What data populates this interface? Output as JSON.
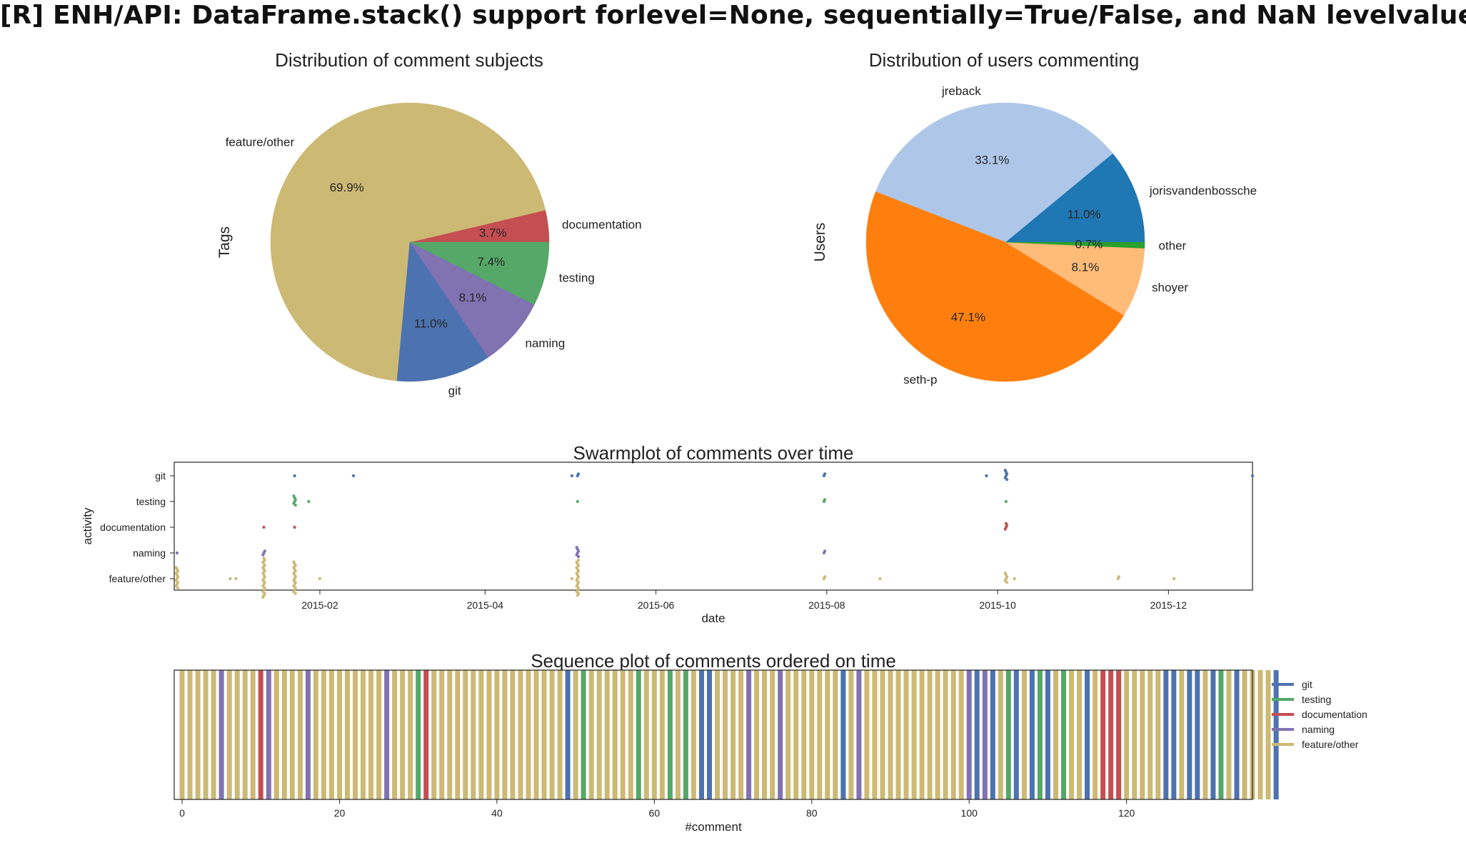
{
  "page_title": "[R] ENH/API: DataFrame.stack() support forlevel=None, sequentially=True/False, and NaN levelvalues.",
  "colors": {
    "git": "#4c72b0",
    "testing": "#55a868",
    "documentation": "#c44e52",
    "naming": "#8172b2",
    "feature/other": "#ccb974"
  },
  "chart_data": [
    {
      "type": "pie",
      "title": "Distribution of comment subjects",
      "ylabel": "Tags",
      "slices": [
        {
          "label": "documentation",
          "pct": 3.7,
          "pct_label": "3.7%",
          "color": "#c44e52"
        },
        {
          "label": "feature/other",
          "pct": 69.9,
          "pct_label": "69.9%",
          "color": "#ccb974"
        },
        {
          "label": "git",
          "pct": 11.0,
          "pct_label": "11.0%",
          "color": "#4c72b0"
        },
        {
          "label": "naming",
          "pct": 8.1,
          "pct_label": "8.1%",
          "color": "#8172b2"
        },
        {
          "label": "testing",
          "pct": 7.4,
          "pct_label": "7.4%",
          "color": "#55a868"
        }
      ]
    },
    {
      "type": "pie",
      "title": "Distribution of users commenting",
      "ylabel": "Users",
      "slices": [
        {
          "label": "jorisvandenbossche",
          "pct": 11.0,
          "pct_label": "11.0%",
          "color": "#1f77b4"
        },
        {
          "label": "jreback",
          "pct": 33.1,
          "pct_label": "33.1%",
          "color": "#aec7e8"
        },
        {
          "label": "seth-p",
          "pct": 47.1,
          "pct_label": "47.1%",
          "color": "#ff7f0e"
        },
        {
          "label": "shoyer",
          "pct": 8.1,
          "pct_label": "8.1%",
          "color": "#ffbb78"
        },
        {
          "label": "other",
          "pct": 0.7,
          "pct_label": "0.7%",
          "color": "#2ca02c"
        }
      ]
    },
    {
      "type": "scatter",
      "title": "Swarmplot of comments over time",
      "xlabel": "date",
      "ylabel": "activity",
      "categories": [
        "git",
        "testing",
        "documentation",
        "naming",
        "feature/other"
      ],
      "xlim": [
        "2014-12-11",
        "2015-12-31"
      ],
      "x_ticks": [
        "2015-02",
        "2015-04",
        "2015-06",
        "2015-08",
        "2015-10",
        "2015-12"
      ],
      "points": [
        {
          "category": "git",
          "dates": [
            "2015-01-23",
            "2015-02-13",
            "2015-05-02",
            "2015-05-04",
            "2015-07-31",
            "2015-09-27",
            "2015-10-04",
            "2015-12-31"
          ],
          "counts": [
            1,
            1,
            1,
            2,
            2,
            1,
            6,
            1
          ]
        },
        {
          "category": "testing",
          "dates": [
            "2015-01-23",
            "2015-01-28",
            "2015-05-04",
            "2015-07-31",
            "2015-10-04"
          ],
          "counts": [
            6,
            1,
            1,
            2,
            1
          ]
        },
        {
          "category": "documentation",
          "dates": [
            "2015-01-12",
            "2015-01-23",
            "2015-10-04"
          ],
          "counts": [
            1,
            1,
            4
          ]
        },
        {
          "category": "naming",
          "dates": [
            "2014-12-12",
            "2015-01-12",
            "2015-05-04",
            "2015-07-31"
          ],
          "counts": [
            1,
            3,
            6,
            2
          ]
        },
        {
          "category": "feature/other",
          "dates": [
            "2014-12-12",
            "2014-12-31",
            "2015-01-02",
            "2015-01-12",
            "2015-01-23",
            "2015-02-01",
            "2015-05-02",
            "2015-05-04",
            "2015-07-31",
            "2015-08-20",
            "2015-10-04",
            "2015-10-07",
            "2015-11-13",
            "2015-12-03"
          ],
          "counts": [
            12,
            1,
            1,
            22,
            18,
            1,
            1,
            20,
            2,
            1,
            6,
            1,
            2,
            1
          ]
        }
      ]
    },
    {
      "type": "bar",
      "title": "Sequence plot of comments ordered on time",
      "xlabel": "#comment",
      "xlim": [
        -1,
        136
      ],
      "x_ticks": [
        0,
        20,
        40,
        60,
        80,
        100,
        120
      ],
      "legend": [
        "git",
        "testing",
        "documentation",
        "naming",
        "feature/other"
      ],
      "legend_position": "right",
      "sequence": [
        "feature/other",
        "feature/other",
        "feature/other",
        "feature/other",
        "feature/other",
        "naming",
        "feature/other",
        "feature/other",
        "feature/other",
        "feature/other",
        "documentation",
        "naming",
        "feature/other",
        "feature/other",
        "feature/other",
        "feature/other",
        "naming",
        "feature/other",
        "feature/other",
        "feature/other",
        "feature/other",
        "feature/other",
        "feature/other",
        "feature/other",
        "feature/other",
        "feature/other",
        "naming",
        "feature/other",
        "feature/other",
        "feature/other",
        "testing",
        "documentation",
        "feature/other",
        "feature/other",
        "feature/other",
        "feature/other",
        "feature/other",
        "feature/other",
        "feature/other",
        "feature/other",
        "feature/other",
        "feature/other",
        "feature/other",
        "feature/other",
        "feature/other",
        "feature/other",
        "feature/other",
        "feature/other",
        "feature/other",
        "git",
        "feature/other",
        "testing",
        "feature/other",
        "feature/other",
        "feature/other",
        "feature/other",
        "feature/other",
        "feature/other",
        "testing",
        "feature/other",
        "feature/other",
        "feature/other",
        "testing",
        "feature/other",
        "testing",
        "feature/other",
        "git",
        "git",
        "feature/other",
        "feature/other",
        "feature/other",
        "feature/other",
        "naming",
        "feature/other",
        "feature/other",
        "feature/other",
        "naming",
        "feature/other",
        "feature/other",
        "feature/other",
        "feature/other",
        "feature/other",
        "feature/other",
        "feature/other",
        "git",
        "feature/other",
        "naming",
        "feature/other",
        "feature/other",
        "feature/other",
        "feature/other",
        "feature/other",
        "feature/other",
        "feature/other",
        "feature/other",
        "feature/other",
        "feature/other",
        "feature/other",
        "feature/other",
        "feature/other",
        "naming",
        "git",
        "naming",
        "git",
        "feature/other",
        "testing",
        "git",
        "feature/other",
        "git",
        "testing",
        "git",
        "feature/other",
        "testing",
        "feature/other",
        "feature/other",
        "git",
        "feature/other",
        "documentation",
        "documentation",
        "documentation",
        "feature/other",
        "feature/other",
        "feature/other",
        "feature/other",
        "feature/other",
        "git",
        "git",
        "feature/other",
        "git",
        "git",
        "feature/other",
        "git",
        "testing",
        "feature/other",
        "git",
        "feature/other",
        "feature/other",
        "feature/other",
        "feature/other",
        "git"
      ]
    }
  ]
}
